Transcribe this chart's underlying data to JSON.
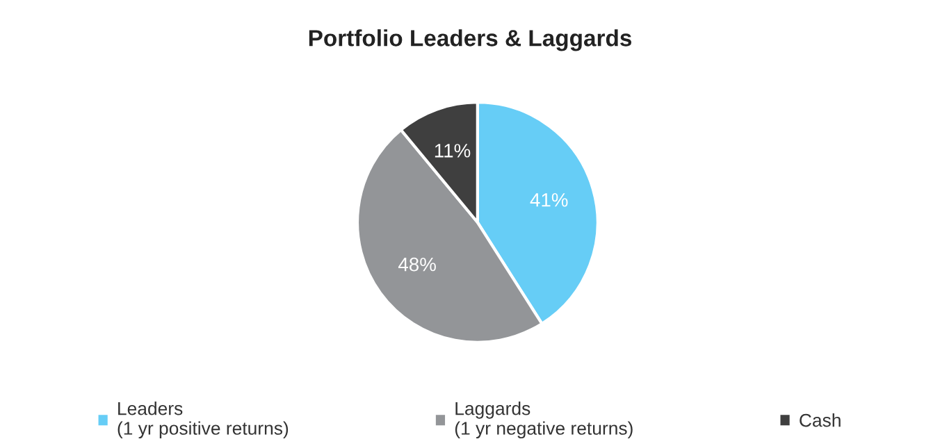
{
  "chart_data": {
    "type": "pie",
    "title": "Portfolio Leaders & Laggards",
    "categories": [
      "Leaders\n(1 yr positive returns)",
      "Laggards\n(1 yr negative returns)",
      "Cash"
    ],
    "values": [
      41,
      48,
      11
    ],
    "colors": [
      "#66cdf6",
      "#939598",
      "#3f3f3f"
    ],
    "value_labels": [
      "41%",
      "48%",
      "11%"
    ],
    "legend": "bottom"
  }
}
